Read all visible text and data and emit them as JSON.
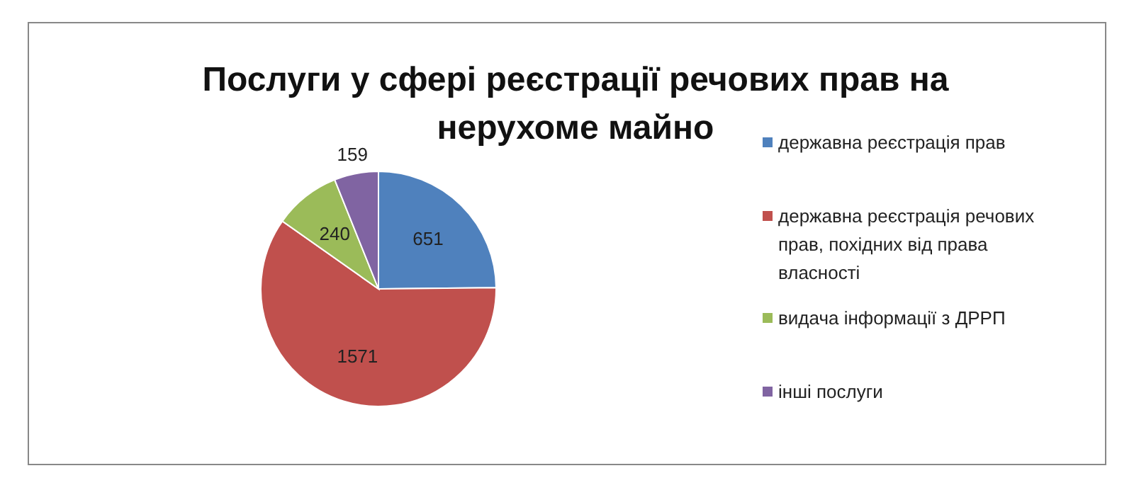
{
  "chart_data": {
    "type": "pie",
    "title": "Послуги у сфері реєстрації речових прав на нерухоме майно",
    "categories": [
      "державна реєстрація прав",
      "державна реєстрація речових прав, похідних від права власності",
      "видача інформації з ДРРП",
      "інші послуги"
    ],
    "values": [
      651,
      1571,
      240,
      159
    ],
    "colors": [
      "#4f81bd",
      "#c0504d",
      "#9bbb59",
      "#8064a2"
    ],
    "data_labels": true,
    "legend": "right"
  }
}
